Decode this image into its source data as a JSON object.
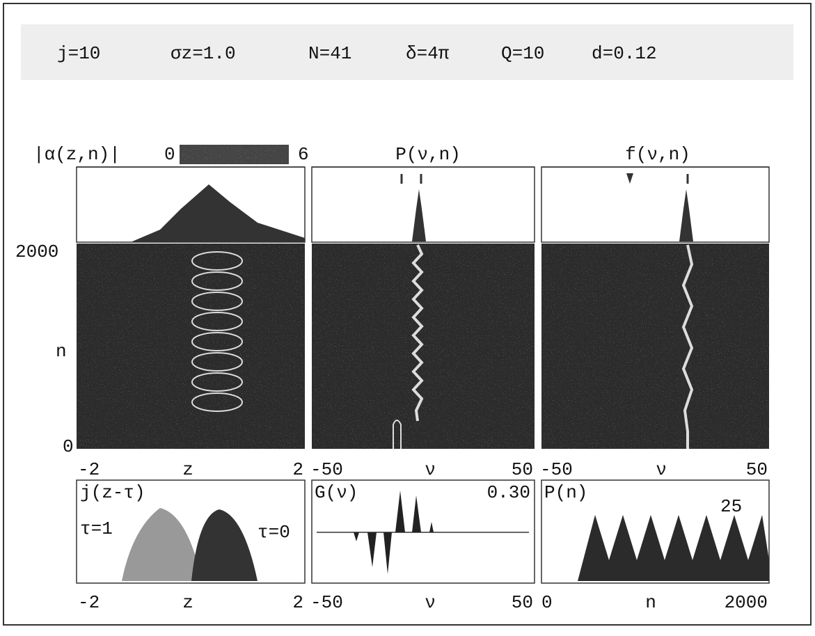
{
  "header": {
    "parameters": [
      "j=10",
      "σz=1.0",
      "N=41",
      "δ=4π",
      "Q=10",
      "d=0.12"
    ]
  },
  "top_labels": {
    "amplitude": "|α(z,n)|",
    "colorbar_min": "0",
    "colorbar_max": "6",
    "power": "P(ν,n)",
    "spectrum": "f(ν,n)"
  },
  "left_axis": {
    "top": "2000",
    "label": "n",
    "bottom": "0"
  },
  "middle_axes": [
    [
      "-2",
      "z",
      "2"
    ],
    [
      "-50",
      "ν",
      "50"
    ],
    [
      "-50",
      "ν",
      "50"
    ]
  ],
  "bottom_panels": {
    "current": {
      "label": "j(z-τ)",
      "tau1": "τ=1",
      "tau0": "τ=0"
    },
    "gain": {
      "label": "G(ν)",
      "max": "0.30"
    },
    "power": {
      "label": "P(n)",
      "max": "25"
    }
  },
  "bottom_axes": [
    [
      "-2",
      "z",
      "2"
    ],
    [
      "-50",
      "ν",
      "50"
    ],
    [
      "0",
      "n",
      "2000"
    ]
  ]
}
